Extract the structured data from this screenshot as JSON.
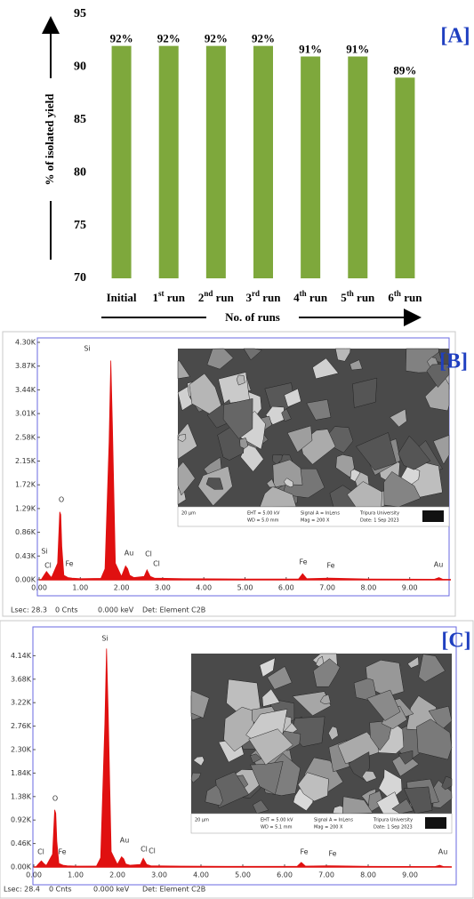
{
  "chart_data": [
    {
      "type": "bar",
      "panel_label": "[A]",
      "y_label": "% of isolated yield",
      "x_label": "No. of runs",
      "categories": [
        "Initial",
        "1st run",
        "2nd run",
        "3rd run",
        "4th run",
        "5th run",
        "6th run"
      ],
      "values": [
        92,
        92,
        92,
        92,
        91,
        91,
        89
      ],
      "value_labels": [
        "92%",
        "92%",
        "92%",
        "92%",
        "91%",
        "91%",
        "89%"
      ],
      "color": "#7ea83c",
      "ylim": [
        70,
        95
      ],
      "yticks": [
        70,
        75,
        80,
        85,
        90,
        95
      ]
    },
    {
      "type": "area",
      "panel_label": "[B]",
      "color": "#e01010",
      "x": [
        0.05,
        0.1,
        0.18,
        0.25,
        0.3,
        0.45,
        0.5,
        0.525,
        0.55,
        0.6,
        0.7,
        0.8,
        1.0,
        1.5,
        1.6,
        1.7,
        1.74,
        1.78,
        1.85,
        2.0,
        2.1,
        2.15,
        2.2,
        2.3,
        2.55,
        2.62,
        2.7,
        2.8,
        3.5,
        5.0,
        6.3,
        6.4,
        6.5,
        7.05,
        8.0,
        9.6,
        9.71,
        9.8,
        10.0
      ],
      "values": [
        0,
        60,
        150,
        80,
        40,
        300,
        1230,
        1180,
        600,
        80,
        40,
        30,
        20,
        25,
        200,
        2500,
        3970,
        2800,
        300,
        60,
        250,
        200,
        80,
        40,
        60,
        180,
        60,
        30,
        20,
        15,
        15,
        110,
        20,
        30,
        15,
        10,
        40,
        10,
        5
      ],
      "xlim": [
        0,
        10
      ],
      "xticks": [
        {
          "value": 0,
          "label": "0.00"
        },
        {
          "value": 1,
          "label": "1.00"
        },
        {
          "value": 2,
          "label": "2.00"
        },
        {
          "value": 3,
          "label": "3.00"
        },
        {
          "value": 4,
          "label": "4.00"
        },
        {
          "value": 5,
          "label": "5.00"
        },
        {
          "value": 6,
          "label": "6.00"
        },
        {
          "value": 7,
          "label": "7.00"
        },
        {
          "value": 8,
          "label": "8.00"
        },
        {
          "value": 9,
          "label": "9.00"
        }
      ],
      "ylim": [
        0,
        4300
      ],
      "yticks": [
        {
          "value": 0,
          "label": "0.00K"
        },
        {
          "value": 430,
          "label": "0.43K"
        },
        {
          "value": 860,
          "label": "0.86K"
        },
        {
          "value": 1290,
          "label": "1.29K"
        },
        {
          "value": 1720,
          "label": "1.72K"
        },
        {
          "value": 2150,
          "label": "2.15K"
        },
        {
          "value": 2580,
          "label": "2.58K"
        },
        {
          "value": 3010,
          "label": "3.01K"
        },
        {
          "value": 3440,
          "label": "3.44K"
        },
        {
          "value": 3870,
          "label": "3.87K"
        },
        {
          "value": 4300,
          "label": "4.30K"
        }
      ],
      "peak_labels": [
        "Si",
        "O",
        "Si",
        "Cl",
        "Fe",
        "Au",
        "Cl",
        "Cl",
        "Fe",
        "Fe",
        "Au"
      ],
      "footer": [
        "Lsec: 28.3",
        "0 Cnts",
        "0.000 keV",
        "Det: Element C2B"
      ],
      "inset_caption": [
        "20 µm",
        "EHT = 5.00 kV",
        "WD = 5.0 mm",
        "Signal A = InLens",
        "Mag = 200 X",
        "Tripura University",
        "Date: 1 Sep 2023"
      ]
    },
    {
      "type": "area",
      "panel_label": "[C]",
      "color": "#e01010",
      "x": [
        0.05,
        0.1,
        0.18,
        0.25,
        0.3,
        0.45,
        0.5,
        0.525,
        0.55,
        0.6,
        0.7,
        0.8,
        1.0,
        1.5,
        1.6,
        1.7,
        1.74,
        1.78,
        1.85,
        2.0,
        2.1,
        2.15,
        2.2,
        2.3,
        2.55,
        2.62,
        2.7,
        2.8,
        3.5,
        5.0,
        6.3,
        6.4,
        6.5,
        7.05,
        8.0,
        9.6,
        9.71,
        9.8,
        10.0
      ],
      "values": [
        0,
        50,
        120,
        60,
        30,
        250,
        1120,
        1050,
        500,
        70,
        35,
        25,
        18,
        20,
        180,
        2800,
        4280,
        3000,
        300,
        50,
        200,
        160,
        60,
        35,
        50,
        170,
        50,
        25,
        18,
        12,
        12,
        90,
        18,
        25,
        12,
        8,
        35,
        8,
        4
      ],
      "xlim": [
        0,
        10
      ],
      "xticks": [
        {
          "value": 0,
          "label": "0.00"
        },
        {
          "value": 1,
          "label": "1.00"
        },
        {
          "value": 2,
          "label": "2.00"
        },
        {
          "value": 3,
          "label": "3.00"
        },
        {
          "value": 4,
          "label": "4.00"
        },
        {
          "value": 5,
          "label": "5.00"
        },
        {
          "value": 6,
          "label": "6.00"
        },
        {
          "value": 7,
          "label": "7.00"
        },
        {
          "value": 8,
          "label": "8.00"
        },
        {
          "value": 9,
          "label": "9.00"
        }
      ],
      "ylim": [
        0,
        4600
      ],
      "yticks": [
        {
          "value": 0,
          "label": "0.00K"
        },
        {
          "value": 460,
          "label": "0.46K"
        },
        {
          "value": 920,
          "label": "0.92K"
        },
        {
          "value": 1380,
          "label": "1.38K"
        },
        {
          "value": 1840,
          "label": "1.84K"
        },
        {
          "value": 2300,
          "label": "2.30K"
        },
        {
          "value": 2760,
          "label": "2.76K"
        },
        {
          "value": 3220,
          "label": "3.22K"
        },
        {
          "value": 3680,
          "label": "3.68K"
        },
        {
          "value": 4140,
          "label": "4.14K"
        }
      ],
      "peak_labels": [
        "Si",
        "O",
        "Cl",
        "Fe",
        "Au",
        "Cl",
        "Cl",
        "Fe",
        "Fe",
        "Au"
      ],
      "footer": [
        "Lsec: 28.4",
        "0 Cnts",
        "0.000 keV",
        "Det: Element C2B"
      ],
      "inset_caption": [
        "20 µm",
        "EHT = 5.00 kV",
        "WD = 5.1 mm",
        "Signal A = InLens",
        "Mag = 200 X",
        "Tripura University",
        "Date: 1 Sep 2023"
      ]
    }
  ]
}
